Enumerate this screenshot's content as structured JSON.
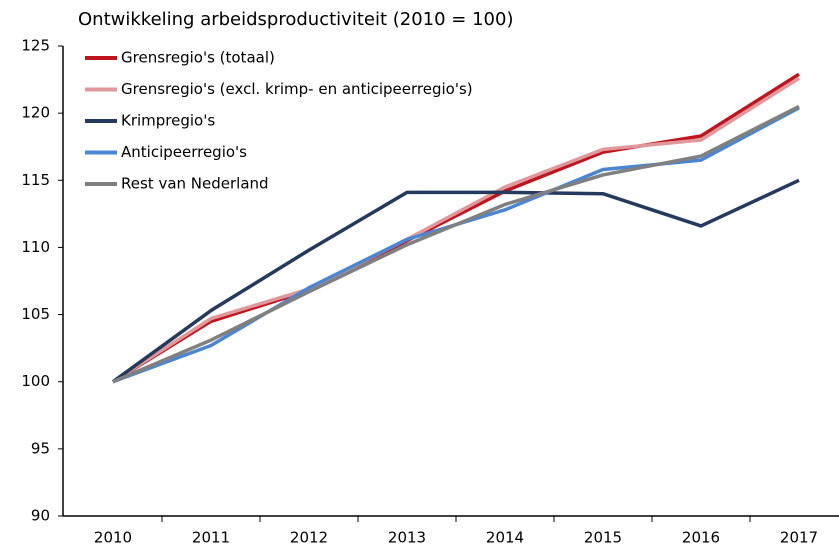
{
  "chart_data": {
    "type": "line",
    "title": "Ontwikkeling arbeidsproductiviteit (2010 = 100)",
    "categories": [
      "2010",
      "2011",
      "2012",
      "2013",
      "2014",
      "2015",
      "2016",
      "2017"
    ],
    "series": [
      {
        "name": "Grensregio's (totaal)",
        "color": "#c0141e",
        "values": [
          100,
          104.5,
          106.8,
          110.5,
          114.2,
          117.1,
          118.3,
          122.9
        ]
      },
      {
        "name": "Grensregio's (excl. krimp- en anticipeerregio's)",
        "color": "#e0989a",
        "values": [
          100,
          104.7,
          106.9,
          110.6,
          114.5,
          117.3,
          118.0,
          122.6
        ]
      },
      {
        "name": "Krimpregio's",
        "color": "#243a5e",
        "values": [
          100,
          105.3,
          109.8,
          114.1,
          114.1,
          114.0,
          111.6,
          115.0
        ]
      },
      {
        "name": "Anticipeerregio's",
        "color": "#4a86d4",
        "values": [
          100,
          102.7,
          107.0,
          110.6,
          112.8,
          115.8,
          116.5,
          120.4
        ]
      },
      {
        "name": "Rest van Nederland",
        "color": "#808080",
        "values": [
          100,
          103.1,
          106.7,
          110.2,
          113.2,
          115.4,
          116.8,
          120.5
        ]
      }
    ],
    "ylim": [
      90,
      125
    ],
    "yticks": [
      90,
      95,
      100,
      105,
      110,
      115,
      120,
      125
    ],
    "grid": false,
    "legend": "upper left"
  }
}
